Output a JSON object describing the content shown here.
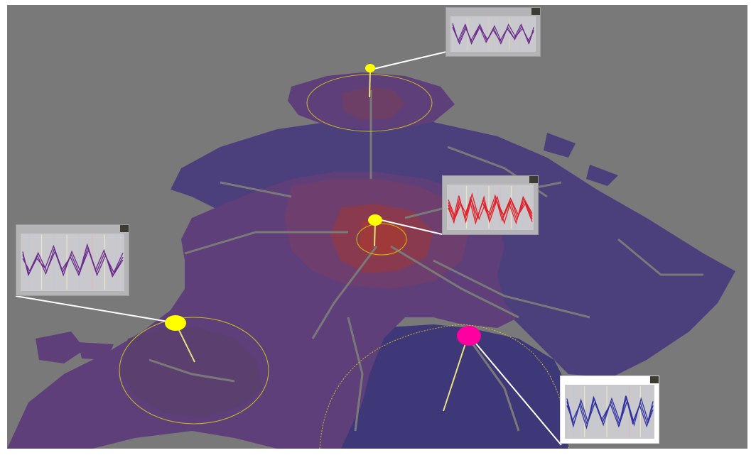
{
  "view": {
    "background_color": "#7a797a",
    "region_colors": {
      "outer": "#4b3f7c",
      "mid": "#5e3f7a",
      "inner": "#6e3f6e",
      "core": "#8a3a4e",
      "suburb_south": "#3f3878"
    }
  },
  "markers": [
    {
      "name": "north-marker",
      "color": "#ffff00",
      "state": "normal"
    },
    {
      "name": "center-marker",
      "color": "#ffff00",
      "state": "normal"
    },
    {
      "name": "west-marker",
      "color": "#ffff00",
      "state": "normal"
    },
    {
      "name": "southeast-marker",
      "color": "#ff00a0",
      "state": "selected"
    }
  ],
  "callouts": [
    {
      "name": "north-callout",
      "line_color": "#6a2a8a",
      "style": "gray"
    },
    {
      "name": "center-callout",
      "line_color": "#e0202a",
      "style": "gray"
    },
    {
      "name": "west-callout",
      "line_color": "#6a2a8a",
      "style": "gray"
    },
    {
      "name": "southeast-callout",
      "line_color": "#3030a0",
      "style": "white"
    }
  ]
}
